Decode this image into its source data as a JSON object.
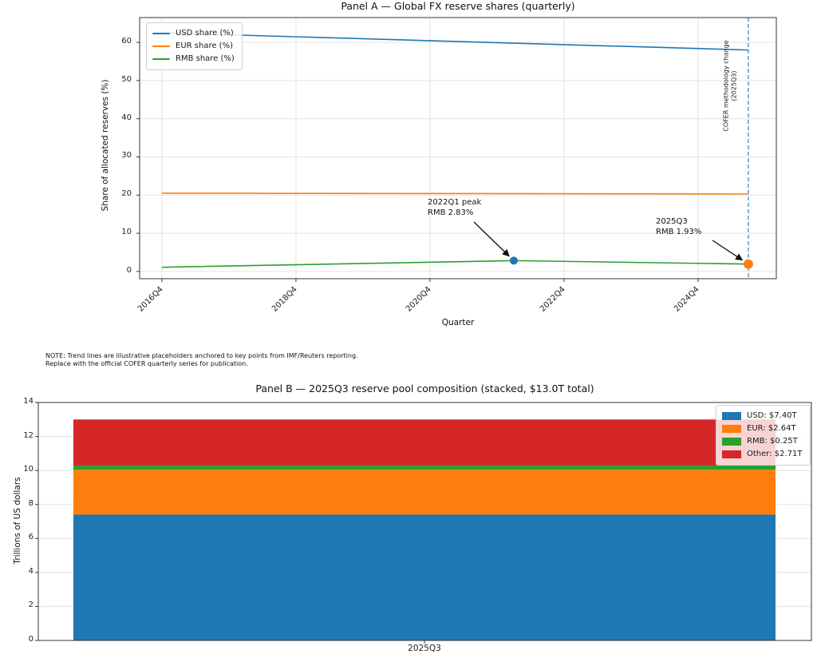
{
  "figure": {
    "background": "#ffffff",
    "note": {
      "line1": "NOTE: Trend lines are illustrative placeholders anchored to key points from IMF/Reuters reporting.",
      "line2": "Replace with the official COFER quarterly series for publication."
    }
  },
  "chart_data": [
    {
      "id": "panelA",
      "type": "line",
      "title": "Panel A — Global FX reserve shares (quarterly)",
      "xlabel": "Quarter",
      "ylabel": "Share of allocated reserves (%)",
      "x_unit": "quarters since 2016Q4",
      "x_range": [
        -1.33,
        36.67
      ],
      "y_range": [
        -1.9,
        66.5
      ],
      "grid": true,
      "legend_position": "upper left",
      "x_ticks": [
        {
          "q": 0,
          "label": "2016Q4"
        },
        {
          "q": 8,
          "label": "2018Q4"
        },
        {
          "q": 16,
          "label": "2020Q4"
        },
        {
          "q": 24,
          "label": "2022Q4"
        },
        {
          "q": 32,
          "label": "2024Q4"
        }
      ],
      "y_ticks": [
        0,
        10,
        20,
        30,
        40,
        50,
        60
      ],
      "series": [
        {
          "name": "USD share (%)",
          "color": "#1f77b4",
          "points": [
            [
              0,
              62.5
            ],
            [
              35,
              58.0
            ]
          ]
        },
        {
          "name": "EUR share (%)",
          "color": "#ff7f0e",
          "points": [
            [
              0,
              20.5
            ],
            [
              35,
              20.3
            ]
          ]
        },
        {
          "name": "RMB share (%)",
          "color": "#2ca02c",
          "points": [
            [
              0,
              1.1
            ],
            [
              21,
              2.83
            ],
            [
              35,
              1.93
            ]
          ]
        }
      ],
      "markers": [
        {
          "q": 21,
          "value": 2.83,
          "color": "#1f77b4",
          "radius": 5
        },
        {
          "q": 35,
          "value": 1.93,
          "color": "#ff7f0e",
          "radius": 6
        }
      ],
      "vline": {
        "q": 35,
        "color": "#4e94c6",
        "style": "dashed",
        "label": "COFER methodology change\n(2025Q3)"
      },
      "annotations": [
        {
          "text": "2022Q1 peak\nRMB 2.83%",
          "target_q": 21,
          "target_value": 2.83
        },
        {
          "text": "2025Q3\nRMB 1.93%",
          "target_q": 35,
          "target_value": 1.93
        }
      ]
    },
    {
      "id": "panelB",
      "type": "stacked_bar",
      "title": "Panel B — 2025Q3 reserve pool composition (stacked, $13.0T total)",
      "xlabel": "",
      "ylabel": "Trillions of US dollars",
      "total_label": "$13.0T",
      "categories": [
        "2025Q3"
      ],
      "y_range": [
        0,
        14
      ],
      "y_ticks": [
        0,
        2,
        4,
        6,
        8,
        10,
        12,
        14
      ],
      "grid": true,
      "legend_position": "upper right",
      "segments": [
        {
          "name": "USD",
          "label": "USD: $7.40T",
          "value": 7.4,
          "color": "#1f77b4"
        },
        {
          "name": "EUR",
          "label": "EUR: $2.64T",
          "value": 2.64,
          "color": "#ff7f0e"
        },
        {
          "name": "RMB",
          "label": "RMB: $0.25T",
          "value": 0.25,
          "color": "#2ca02c"
        },
        {
          "name": "Other",
          "label": "Other: $2.71T",
          "value": 2.71,
          "color": "#d62728"
        }
      ]
    }
  ]
}
